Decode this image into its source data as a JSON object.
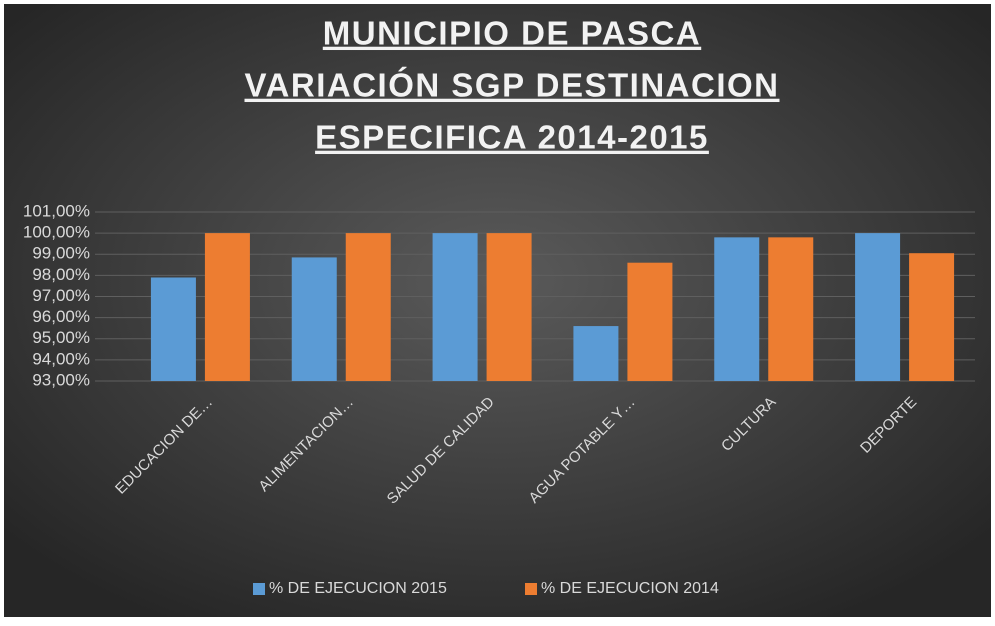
{
  "chart_data": {
    "type": "bar",
    "title": [
      "MUNICIPIO  DE  PASCA",
      "VARIACIÓN  SGP  DESTINACION",
      "ESPECIFICA  2014-2015"
    ],
    "categories": [
      "EDUCACION DE…",
      "ALIMENTACION…",
      "SALUD DE CALIDAD",
      "AGUA POTABLE Y…",
      "CULTURA",
      "DEPORTE"
    ],
    "series": [
      {
        "name": "% DE EJECUCION 2015",
        "color": "#5b9bd5",
        "values": [
          97.9,
          98.85,
          100,
          95.6,
          99.8,
          100
        ]
      },
      {
        "name": "% DE EJECUCION 2014",
        "color": "#ed7d31",
        "values": [
          100,
          100,
          100,
          98.6,
          99.8,
          99.05
        ]
      }
    ],
    "ylim": [
      93,
      101
    ],
    "yticks": [
      {
        "value": 93,
        "label": "93,00%"
      },
      {
        "value": 94,
        "label": "94,00%"
      },
      {
        "value": 95,
        "label": "95,00%"
      },
      {
        "value": 96,
        "label": "96,00%"
      },
      {
        "value": 97,
        "label": "97,00%"
      },
      {
        "value": 98,
        "label": "98,00%"
      },
      {
        "value": 99,
        "label": "99,00%"
      },
      {
        "value": 100,
        "label": "100,00%"
      },
      {
        "value": 101,
        "label": "101,00%"
      }
    ],
    "grid": true,
    "legend": "bottom"
  }
}
